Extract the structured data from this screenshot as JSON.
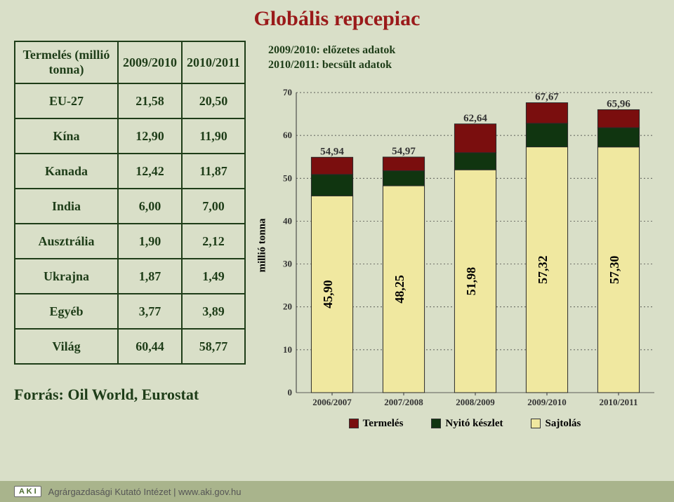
{
  "colors": {
    "background": "#d9dfc8",
    "title": "#9a1a1a",
    "table_border": "#1e3d18",
    "table_text": "#1e3d18",
    "grid": "#333333",
    "tick_text": "#333333",
    "bar_termeles_fill": "#7a0e0e",
    "bar_nyito_fill": "#103510",
    "bar_sajtolas_fill": "#f0e8a0",
    "bar_border": "#2a2a2a",
    "footer_bar": "#a9b48c",
    "footer_text": "#555555"
  },
  "title": "Globális repcepiac",
  "table": {
    "header": [
      "Termelés (millió tonna)",
      "2009/2010",
      "2010/2011"
    ],
    "rows": [
      [
        "EU-27",
        "21,58",
        "20,50"
      ],
      [
        "Kína",
        "12,90",
        "11,90"
      ],
      [
        "Kanada",
        "12,42",
        "11,87"
      ],
      [
        "India",
        "6,00",
        "7,00"
      ],
      [
        "Ausztrália",
        "1,90",
        "2,12"
      ],
      [
        "Ukrajna",
        "1,87",
        "1,49"
      ],
      [
        "Egyéb",
        "3,77",
        "3,89"
      ],
      [
        "Világ",
        "60,44",
        "58,77"
      ]
    ]
  },
  "source": "Forrás: Oil World, Eurostat",
  "chart": {
    "type": "stacked-bar",
    "note_line1": "2009/2010: előzetes adatok",
    "note_line2": "2010/2011: becsült adatok",
    "ylabel": "millió tonna",
    "ylim": [
      0,
      70
    ],
    "ytick_step": 10,
    "categories": [
      "2006/2007",
      "2007/2008",
      "2008/2009",
      "2009/2010",
      "2010/2011"
    ],
    "top_labels": [
      "54,94",
      "54,97",
      "62,64",
      "67,67",
      "65,96"
    ],
    "sajtolas_values": [
      45.9,
      48.25,
      51.98,
      57.32,
      57.3
    ],
    "sajtolas_labels": [
      "45,90",
      "48,25",
      "51,98",
      "57,32",
      "57,30"
    ],
    "nyito_values": [
      5.0,
      3.5,
      4.0,
      5.5,
      4.5
    ],
    "termeles_values": [
      4.0,
      3.2,
      6.7,
      4.8,
      4.2
    ],
    "bar_width": 0.58,
    "legend": [
      "Termelés",
      "Nyitó készlet",
      "Sajtolás"
    ],
    "label_fontsize": 13,
    "tick_fontsize": 13
  },
  "footer": {
    "badge": "A K I",
    "text": "Agrárgazdasági Kutató Intézet | www.aki.gov.hu"
  }
}
